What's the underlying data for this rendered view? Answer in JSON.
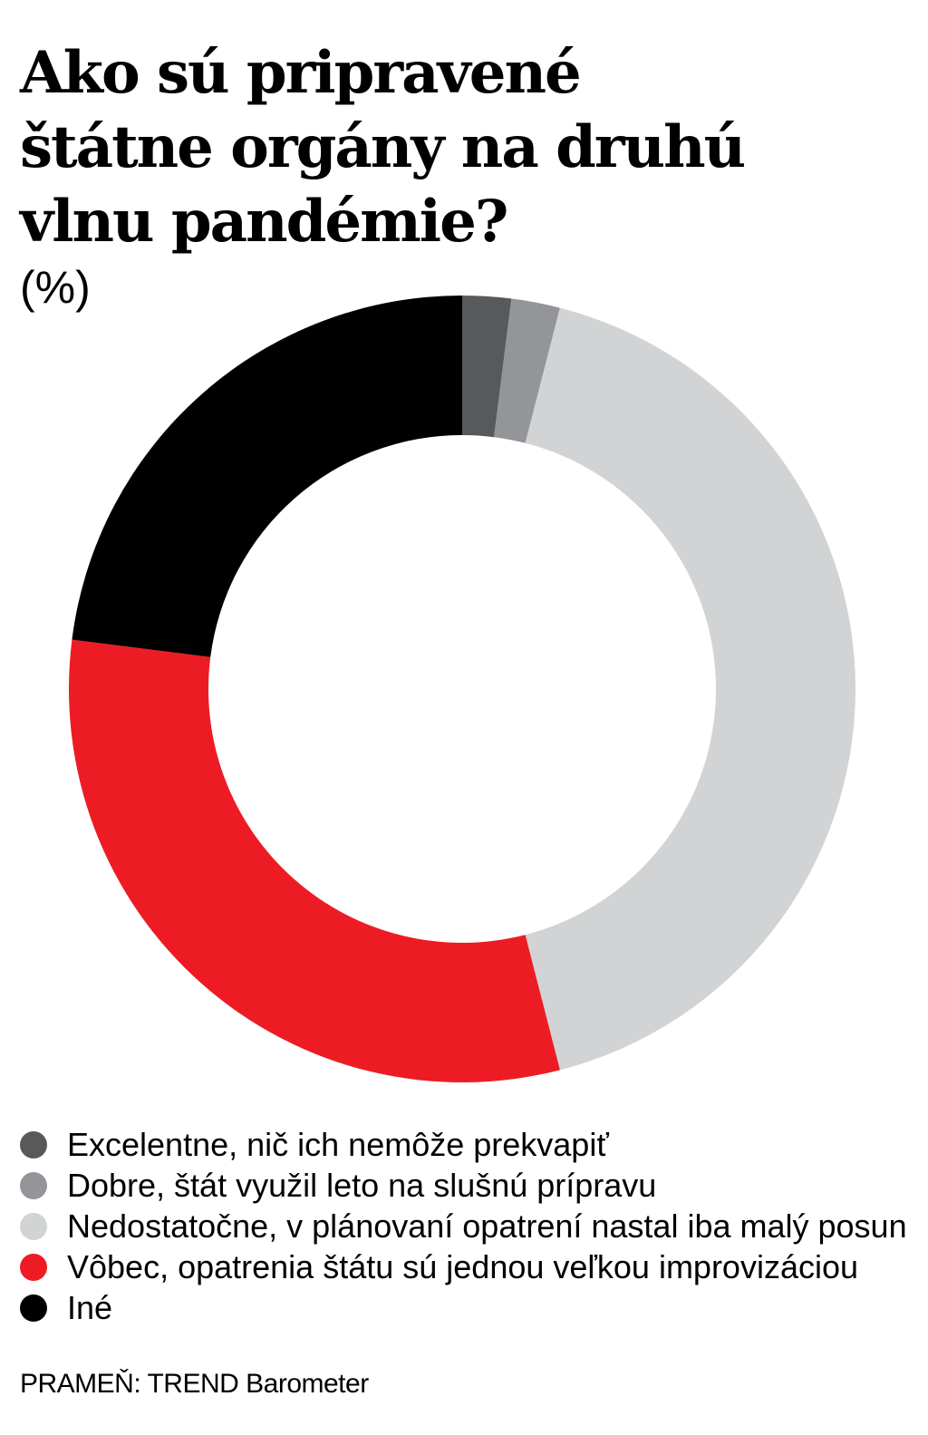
{
  "chart_data": {
    "type": "pie",
    "title_lines": [
      "Ako sú pripravené",
      "štátne orgány na druhú",
      "vlnu pandémie?"
    ],
    "unit": "(%)",
    "categories": [
      "Excelentne, nič ich nemôže prekvapiť",
      "Dobre, štát využil leto na slušnú prípravu",
      "Nedostatočne, v plánovaní opatrení nastal iba malý posun",
      "Vôbec, opatrenia štátu sú jednou veľkou improvizáciou",
      "Iné"
    ],
    "values": [
      2,
      2,
      42,
      31,
      23
    ],
    "colors": [
      "#58595b",
      "#939598",
      "#d1d3d4",
      "#ed1c24",
      "#000000"
    ],
    "legend_position": "bottom-left",
    "source": "PRAMEŇ: TREND Barometer"
  }
}
